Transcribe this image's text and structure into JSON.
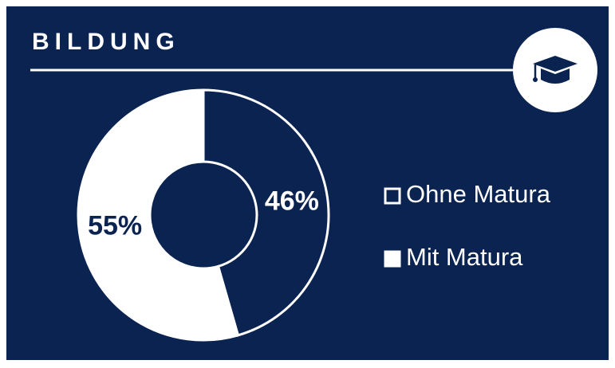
{
  "chart_data": {
    "type": "donut",
    "title": "BILDUNG",
    "categories": [
      "Ohne Matura",
      "Mit Matura"
    ],
    "values": [
      46,
      55
    ],
    "value_labels": [
      "46%",
      "55%"
    ],
    "colors": [
      "#0a2351",
      "#ffffff"
    ]
  }
}
